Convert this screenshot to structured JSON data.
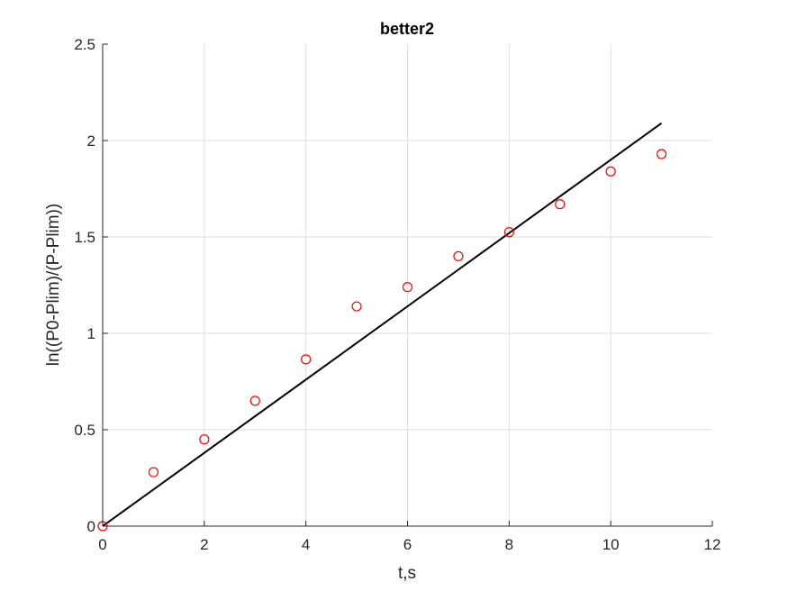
{
  "chart_data": {
    "type": "scatter",
    "title": "better2",
    "xlabel": "t,s",
    "ylabel": "ln((P0-Plim)/(P-Plim))",
    "xlim": [
      0,
      12
    ],
    "ylim": [
      0,
      2.5
    ],
    "xticks": [
      0,
      2,
      4,
      6,
      8,
      10,
      12
    ],
    "yticks": [
      0,
      0.5,
      1,
      1.5,
      2,
      2.5
    ],
    "x_tick_labels": [
      "0",
      "2",
      "4",
      "6",
      "8",
      "10",
      "12"
    ],
    "y_tick_labels": [
      "0",
      "0.5",
      "1",
      "1.5",
      "2",
      "2.5"
    ],
    "grid": true,
    "series": [
      {
        "kind": "markers",
        "marker": "circle",
        "color": "#ff0000",
        "x": [
          0,
          1,
          2,
          3,
          4,
          5,
          6,
          7,
          8,
          9,
          10,
          11
        ],
        "y": [
          0,
          0.28,
          0.45,
          0.65,
          0.865,
          1.14,
          1.24,
          1.4,
          1.525,
          1.67,
          1.84,
          1.93
        ]
      },
      {
        "kind": "line",
        "color": "#000000",
        "x": [
          0,
          11
        ],
        "y": [
          0,
          2.09
        ]
      }
    ]
  }
}
